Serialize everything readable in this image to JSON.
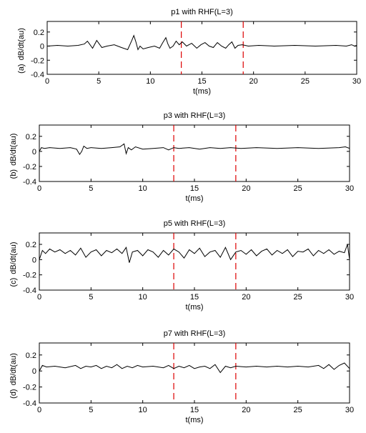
{
  "chart_data": [
    {
      "type": "line",
      "title": "p1 with RHF(L=3)",
      "xlabel": "t(ms)",
      "ylabel": "dB/dt(au)",
      "panel_label": "(a)",
      "xlim": [
        0,
        30
      ],
      "ylim": [
        -0.4,
        0.35
      ],
      "xticks": [
        "0",
        "5",
        "10",
        "15",
        "20",
        "25",
        "30"
      ],
      "yticks": [
        "-0.4",
        "-0.2",
        "0",
        "0.2"
      ],
      "markers": [
        13,
        19
      ],
      "series": [
        {
          "color": "#000000",
          "x": [
            0,
            1,
            2,
            3,
            3.6,
            3.9,
            4.1,
            4.4,
            4.8,
            5.0,
            5.3,
            5.8,
            6.5,
            7.2,
            7.8,
            8.2,
            8.4,
            8.6,
            8.8,
            9.0,
            9.3,
            9.8,
            10.4,
            10.9,
            11.2,
            11.5,
            11.7,
            11.9,
            12.2,
            12.5,
            12.8,
            13.1,
            13.5,
            14.0,
            14.5,
            14.9,
            15.3,
            15.7,
            16.1,
            16.5,
            16.9,
            17.3,
            17.6,
            17.9,
            18.2,
            18.5,
            18.9,
            19.5,
            20.5,
            22,
            24,
            26,
            28,
            29,
            29.5,
            29.8,
            30
          ],
          "y": [
            0.0,
            0.01,
            0.0,
            0.01,
            0.03,
            0.07,
            0.03,
            -0.03,
            0.08,
            0.04,
            -0.02,
            0.0,
            0.02,
            -0.02,
            -0.05,
            0.08,
            0.15,
            0.06,
            -0.05,
            0.0,
            -0.04,
            -0.02,
            0.0,
            -0.03,
            0.05,
            0.12,
            0.03,
            -0.03,
            0.0,
            0.07,
            0.02,
            0.06,
            0.0,
            0.04,
            -0.03,
            0.02,
            0.05,
            0.0,
            -0.02,
            0.05,
            0.0,
            -0.03,
            0.02,
            0.06,
            -0.03,
            0.01,
            0.02,
            0.0,
            0.01,
            0.0,
            0.01,
            0.0,
            0.01,
            0.0,
            0.02,
            0.0,
            0.01
          ]
        }
      ]
    },
    {
      "type": "line",
      "title": "p3 with RHF(L=3)",
      "xlabel": "t(ms)",
      "ylabel": "dB/dt(au)",
      "panel_label": "(b)",
      "xlim": [
        0,
        30
      ],
      "ylim": [
        -0.4,
        0.35
      ],
      "xticks": [
        "0",
        "5",
        "10",
        "15",
        "20",
        "25",
        "30"
      ],
      "yticks": [
        "-0.4",
        "-0.2",
        "0",
        "0.2"
      ],
      "markers": [
        13,
        19
      ],
      "series": [
        {
          "color": "#000000",
          "x": [
            0,
            0.2,
            0.5,
            1,
            2,
            3,
            3.6,
            3.9,
            4.1,
            4.3,
            4.6,
            5,
            6,
            7,
            7.8,
            8.2,
            8.4,
            8.6,
            8.9,
            9.3,
            10,
            11,
            12,
            12.5,
            13,
            13.5,
            14.5,
            15.5,
            16.5,
            17.5,
            18.5,
            19.5,
            21,
            23,
            25,
            27,
            29,
            29.6,
            30
          ],
          "y": [
            0.0,
            0.05,
            0.04,
            0.05,
            0.04,
            0.05,
            0.03,
            -0.04,
            0.0,
            0.07,
            0.04,
            0.05,
            0.04,
            0.05,
            0.06,
            0.1,
            -0.03,
            0.05,
            0.02,
            0.06,
            0.03,
            0.04,
            0.05,
            0.02,
            0.05,
            0.04,
            0.05,
            0.03,
            0.05,
            0.04,
            0.05,
            0.04,
            0.05,
            0.04,
            0.05,
            0.04,
            0.05,
            0.06,
            0.04
          ]
        }
      ]
    },
    {
      "type": "line",
      "title": "p5 with RHF(L=3)",
      "xlabel": "t(ms)",
      "ylabel": "dB/dt(au)",
      "panel_label": "(c)",
      "xlim": [
        0,
        30
      ],
      "ylim": [
        -0.4,
        0.35
      ],
      "xticks": [
        "0",
        "5",
        "10",
        "15",
        "20",
        "25",
        "30"
      ],
      "yticks": [
        "-0.4",
        "-0.2",
        "0",
        "0.2"
      ],
      "markers": [
        13,
        19
      ],
      "series": [
        {
          "color": "#000000",
          "x": [
            0,
            0.3,
            0.6,
            1.0,
            1.5,
            2.0,
            2.5,
            3.0,
            3.5,
            4.0,
            4.5,
            5.0,
            5.5,
            6.0,
            6.5,
            7.0,
            7.5,
            8.0,
            8.4,
            8.7,
            9.0,
            9.5,
            10.0,
            10.5,
            11.0,
            11.5,
            12.0,
            12.5,
            13.0,
            13.5,
            14.0,
            14.5,
            15.0,
            15.5,
            16.0,
            16.5,
            17.0,
            17.5,
            18.0,
            18.5,
            19.0,
            19.5,
            20.0,
            20.5,
            21.0,
            21.5,
            22.0,
            22.5,
            23.0,
            23.5,
            24.0,
            24.5,
            25.0,
            25.5,
            26.0,
            26.5,
            27.0,
            27.5,
            28.0,
            28.5,
            29.0,
            29.5,
            29.8,
            30
          ],
          "y": [
            0.0,
            0.12,
            0.08,
            0.14,
            0.1,
            0.13,
            0.08,
            0.12,
            0.06,
            0.15,
            0.03,
            0.1,
            0.13,
            0.05,
            0.12,
            0.09,
            0.14,
            0.08,
            0.16,
            -0.04,
            0.1,
            0.12,
            0.05,
            0.13,
            0.1,
            0.03,
            0.12,
            0.06,
            0.14,
            0.1,
            0.02,
            0.13,
            0.08,
            0.15,
            0.04,
            0.1,
            0.12,
            0.03,
            0.16,
            0.0,
            0.1,
            0.12,
            0.07,
            0.13,
            0.05,
            0.11,
            0.14,
            0.06,
            0.12,
            0.08,
            0.13,
            0.04,
            0.11,
            0.1,
            0.14,
            0.05,
            0.12,
            0.08,
            0.13,
            0.07,
            0.11,
            0.09,
            0.2,
            0.0
          ]
        }
      ]
    },
    {
      "type": "line",
      "title": "p7 with RHF(L=3)",
      "xlabel": "t(ms)",
      "ylabel": "dB/dt(au)",
      "panel_label": "(d)",
      "xlim": [
        0,
        30
      ],
      "ylim": [
        -0.4,
        0.35
      ],
      "xticks": [
        "0",
        "5",
        "10",
        "15",
        "20",
        "25",
        "30"
      ],
      "yticks": [
        "-0.4",
        "-0.2",
        "0",
        "0.2"
      ],
      "markers": [
        13,
        19
      ],
      "series": [
        {
          "color": "#000000",
          "x": [
            0,
            0.3,
            0.7,
            1.5,
            2.5,
            3.5,
            4.0,
            4.5,
            5.0,
            5.5,
            6.0,
            6.5,
            7.0,
            7.5,
            8.0,
            8.5,
            9.0,
            9.5,
            10.0,
            11.0,
            12.0,
            12.5,
            13.0,
            13.5,
            14.0,
            14.5,
            15.0,
            15.5,
            16.0,
            16.5,
            17.0,
            17.5,
            18.0,
            18.5,
            19.0,
            20,
            21,
            22,
            23,
            24,
            25,
            26,
            27,
            27.5,
            28.0,
            28.5,
            29.0,
            29.5,
            30
          ],
          "y": [
            0.0,
            0.07,
            0.05,
            0.06,
            0.04,
            0.07,
            0.03,
            0.06,
            0.05,
            0.07,
            0.03,
            0.06,
            0.04,
            0.08,
            0.03,
            0.06,
            0.04,
            0.07,
            0.05,
            0.06,
            0.04,
            0.07,
            0.03,
            0.06,
            0.04,
            0.07,
            0.03,
            0.05,
            0.06,
            0.03,
            0.08,
            -0.02,
            0.06,
            0.04,
            0.06,
            0.05,
            0.06,
            0.05,
            0.06,
            0.05,
            0.06,
            0.05,
            0.07,
            0.03,
            0.08,
            0.02,
            0.07,
            0.1,
            0.03
          ]
        }
      ]
    }
  ]
}
